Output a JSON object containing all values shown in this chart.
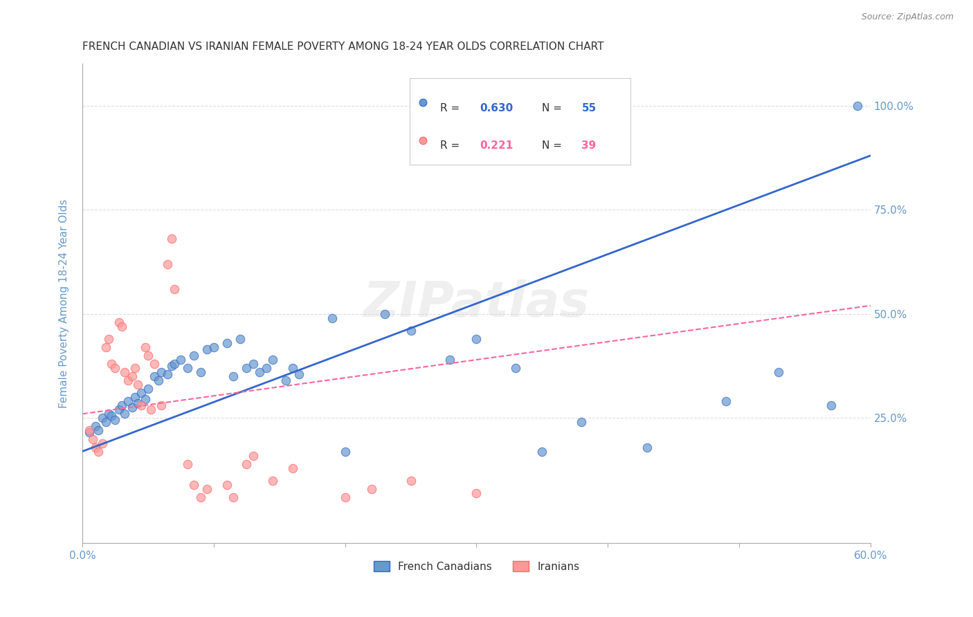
{
  "title": "FRENCH CANADIAN VS IRANIAN FEMALE POVERTY AMONG 18-24 YEAR OLDS CORRELATION CHART",
  "source": "Source: ZipAtlas.com",
  "ylabel": "Female Poverty Among 18-24 Year Olds",
  "ytick_labels": [
    "100.0%",
    "75.0%",
    "50.0%",
    "25.0%"
  ],
  "ytick_values": [
    1.0,
    0.75,
    0.5,
    0.25
  ],
  "xlim": [
    0.0,
    0.6
  ],
  "ylim": [
    -0.05,
    1.1
  ],
  "watermark": "ZIPatlas",
  "blue_scatter": [
    [
      0.005,
      0.215
    ],
    [
      0.01,
      0.23
    ],
    [
      0.012,
      0.22
    ],
    [
      0.015,
      0.25
    ],
    [
      0.018,
      0.24
    ],
    [
      0.02,
      0.26
    ],
    [
      0.022,
      0.255
    ],
    [
      0.025,
      0.245
    ],
    [
      0.028,
      0.27
    ],
    [
      0.03,
      0.28
    ],
    [
      0.032,
      0.26
    ],
    [
      0.035,
      0.29
    ],
    [
      0.038,
      0.275
    ],
    [
      0.04,
      0.3
    ],
    [
      0.042,
      0.285
    ],
    [
      0.045,
      0.31
    ],
    [
      0.048,
      0.295
    ],
    [
      0.05,
      0.32
    ],
    [
      0.055,
      0.35
    ],
    [
      0.058,
      0.34
    ],
    [
      0.06,
      0.36
    ],
    [
      0.065,
      0.355
    ],
    [
      0.068,
      0.375
    ],
    [
      0.07,
      0.38
    ],
    [
      0.075,
      0.39
    ],
    [
      0.08,
      0.37
    ],
    [
      0.085,
      0.4
    ],
    [
      0.09,
      0.36
    ],
    [
      0.095,
      0.415
    ],
    [
      0.1,
      0.42
    ],
    [
      0.11,
      0.43
    ],
    [
      0.115,
      0.35
    ],
    [
      0.12,
      0.44
    ],
    [
      0.125,
      0.37
    ],
    [
      0.13,
      0.38
    ],
    [
      0.135,
      0.36
    ],
    [
      0.14,
      0.37
    ],
    [
      0.145,
      0.39
    ],
    [
      0.155,
      0.34
    ],
    [
      0.16,
      0.37
    ],
    [
      0.165,
      0.355
    ],
    [
      0.19,
      0.49
    ],
    [
      0.2,
      0.17
    ],
    [
      0.23,
      0.5
    ],
    [
      0.25,
      0.46
    ],
    [
      0.28,
      0.39
    ],
    [
      0.3,
      0.44
    ],
    [
      0.33,
      0.37
    ],
    [
      0.35,
      0.17
    ],
    [
      0.38,
      0.24
    ],
    [
      0.43,
      0.18
    ],
    [
      0.49,
      0.29
    ],
    [
      0.53,
      0.36
    ],
    [
      0.57,
      0.28
    ],
    [
      0.59,
      1.0
    ]
  ],
  "pink_scatter": [
    [
      0.005,
      0.22
    ],
    [
      0.008,
      0.2
    ],
    [
      0.01,
      0.18
    ],
    [
      0.012,
      0.17
    ],
    [
      0.015,
      0.19
    ],
    [
      0.018,
      0.42
    ],
    [
      0.02,
      0.44
    ],
    [
      0.022,
      0.38
    ],
    [
      0.025,
      0.37
    ],
    [
      0.028,
      0.48
    ],
    [
      0.03,
      0.47
    ],
    [
      0.032,
      0.36
    ],
    [
      0.035,
      0.34
    ],
    [
      0.038,
      0.35
    ],
    [
      0.04,
      0.37
    ],
    [
      0.042,
      0.33
    ],
    [
      0.045,
      0.28
    ],
    [
      0.048,
      0.42
    ],
    [
      0.05,
      0.4
    ],
    [
      0.052,
      0.27
    ],
    [
      0.055,
      0.38
    ],
    [
      0.06,
      0.28
    ],
    [
      0.065,
      0.62
    ],
    [
      0.068,
      0.68
    ],
    [
      0.07,
      0.56
    ],
    [
      0.08,
      0.14
    ],
    [
      0.085,
      0.09
    ],
    [
      0.09,
      0.06
    ],
    [
      0.095,
      0.08
    ],
    [
      0.11,
      0.09
    ],
    [
      0.115,
      0.06
    ],
    [
      0.125,
      0.14
    ],
    [
      0.13,
      0.16
    ],
    [
      0.145,
      0.1
    ],
    [
      0.16,
      0.13
    ],
    [
      0.2,
      0.06
    ],
    [
      0.22,
      0.08
    ],
    [
      0.25,
      0.1
    ],
    [
      0.3,
      0.07
    ]
  ],
  "blue_line": [
    [
      0.0,
      0.17
    ],
    [
      0.6,
      0.88
    ]
  ],
  "pink_line": [
    [
      0.0,
      0.26
    ],
    [
      0.6,
      0.52
    ]
  ],
  "blue_color": "#6699CC",
  "pink_color": "#FF9999",
  "blue_line_color": "#3366CC",
  "pink_line_color": "#FF6699",
  "scatter_size": 80,
  "background_color": "#FFFFFF",
  "grid_color": "#DDDDDD",
  "axis_color": "#AAAAAA",
  "title_color": "#333333",
  "label_color": "#6699CC",
  "ytick_color": "#6699CC",
  "x_tick_positions": [
    0.0,
    0.1,
    0.2,
    0.3,
    0.4,
    0.5,
    0.6
  ],
  "legend_blue_r_val": "0.630",
  "legend_blue_n_val": "55",
  "legend_pink_r_val": "0.221",
  "legend_pink_n_val": "39",
  "legend_label_blue": "French Canadians",
  "legend_label_pink": "Iranians"
}
